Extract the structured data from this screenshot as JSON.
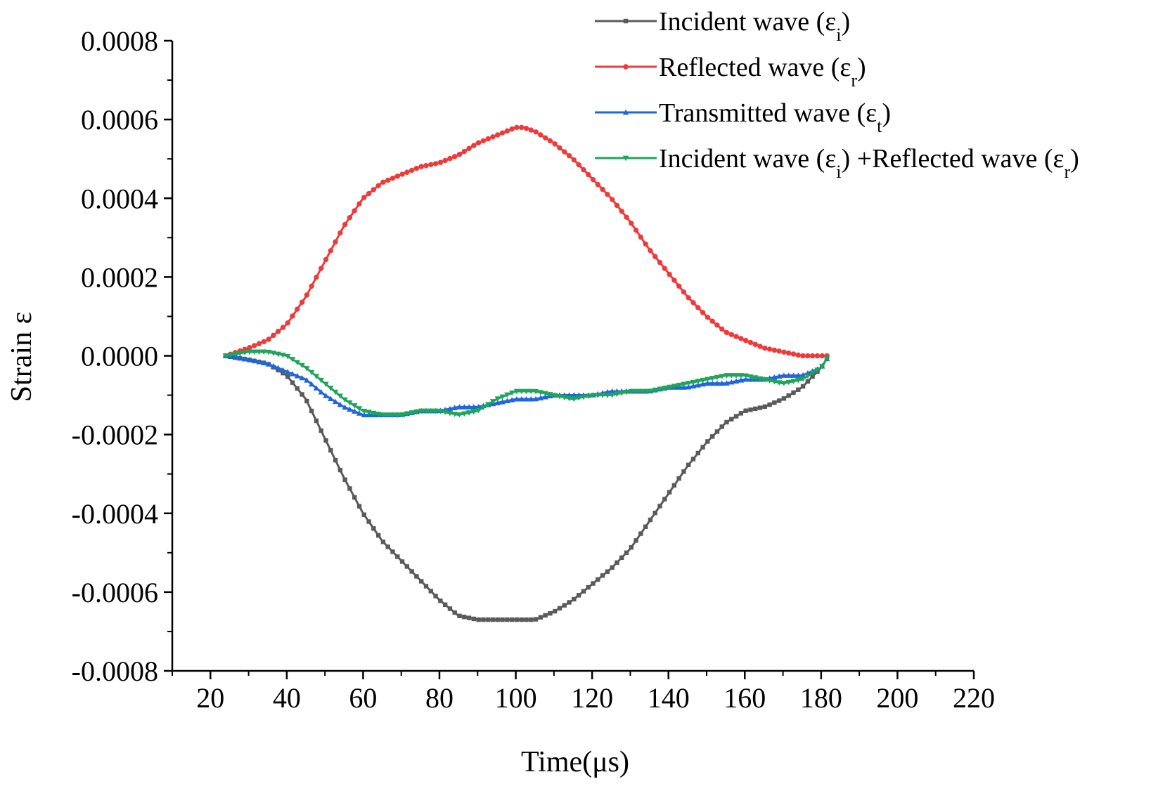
{
  "chart_data": {
    "type": "line",
    "title": "",
    "xlabel": "Time(μs)",
    "ylabel": "Strain ε",
    "xlim": [
      10,
      220
    ],
    "ylim": [
      -0.0008,
      0.0008
    ],
    "xticks": [
      20,
      40,
      60,
      80,
      100,
      120,
      140,
      160,
      180,
      200,
      220
    ],
    "xtick_labels": [
      "20",
      "40",
      "60",
      "80",
      "100",
      "120",
      "140",
      "160",
      "180",
      "200",
      "220"
    ],
    "yticks": [
      -0.0008,
      -0.0006,
      -0.0004,
      -0.0002,
      0.0,
      0.0002,
      0.0004,
      0.0006,
      0.0008
    ],
    "ytick_labels": [
      "-0.0008",
      "-0.0006",
      "-0.0004",
      "-0.0002",
      "0.0000",
      "0.0002",
      "0.0004",
      "0.0006",
      "0.0008"
    ],
    "legend_position": "top-right",
    "series": [
      {
        "name": "Incident wave (εi)",
        "label_main": "Incident wave (ε",
        "label_sub": "i",
        "label_end": ")",
        "color": "#5a5a5a",
        "marker": "square",
        "x": [
          24,
          30,
          35,
          40,
          45,
          50,
          55,
          60,
          65,
          70,
          75,
          80,
          85,
          90,
          95,
          100,
          105,
          110,
          115,
          120,
          125,
          130,
          135,
          140,
          145,
          150,
          155,
          160,
          165,
          170,
          175,
          180,
          182
        ],
        "y": [
          0.0,
          -1e-05,
          -2e-05,
          -5e-05,
          -0.00011,
          -0.00021,
          -0.00031,
          -0.0004,
          -0.00047,
          -0.00052,
          -0.00057,
          -0.00062,
          -0.00066,
          -0.00067,
          -0.00067,
          -0.00067,
          -0.00067,
          -0.00065,
          -0.00062,
          -0.00058,
          -0.00054,
          -0.00049,
          -0.00042,
          -0.00035,
          -0.00028,
          -0.00022,
          -0.00017,
          -0.00014,
          -0.00013,
          -0.00011,
          -8e-05,
          -3e-05,
          0.0
        ]
      },
      {
        "name": "Reflected wave (εr)",
        "label_main": "Reflected wave (ε",
        "label_sub": "r",
        "label_end": ")",
        "color": "#ee3a3a",
        "marker": "circle",
        "x": [
          24,
          30,
          35,
          40,
          45,
          50,
          55,
          60,
          65,
          70,
          75,
          80,
          85,
          90,
          95,
          100,
          102,
          105,
          110,
          115,
          120,
          125,
          130,
          135,
          140,
          145,
          150,
          155,
          160,
          165,
          170,
          175,
          180,
          182
        ],
        "y": [
          0.0,
          2e-05,
          4e-05,
          8e-05,
          0.00015,
          0.00024,
          0.00033,
          0.0004,
          0.00044,
          0.00046,
          0.00048,
          0.00049,
          0.00051,
          0.00054,
          0.00056,
          0.00058,
          0.00058,
          0.00057,
          0.00054,
          0.0005,
          0.00045,
          0.0004,
          0.00034,
          0.00027,
          0.00021,
          0.00015,
          0.0001,
          6e-05,
          4e-05,
          2e-05,
          1e-05,
          0.0,
          0.0,
          0.0
        ]
      },
      {
        "name": "Transmitted wave (εt)",
        "label_main": "Transmitted wave (ε",
        "label_sub": "t",
        "label_end": ")",
        "color": "#1f66dd",
        "marker": "triangle-up",
        "x": [
          24,
          30,
          35,
          40,
          45,
          50,
          55,
          60,
          65,
          70,
          75,
          80,
          85,
          90,
          95,
          100,
          105,
          110,
          115,
          120,
          125,
          130,
          135,
          140,
          145,
          150,
          155,
          160,
          165,
          170,
          175,
          180,
          182
        ],
        "y": [
          0.0,
          -1e-05,
          -2e-05,
          -4e-05,
          -6e-05,
          -0.0001,
          -0.00013,
          -0.00015,
          -0.00015,
          -0.00015,
          -0.00014,
          -0.00014,
          -0.00013,
          -0.00013,
          -0.00012,
          -0.00011,
          -0.00011,
          -0.0001,
          -0.0001,
          -0.0001,
          -9e-05,
          -9e-05,
          -9e-05,
          -8e-05,
          -8e-05,
          -7e-05,
          -7e-05,
          -6e-05,
          -6e-05,
          -5e-05,
          -5e-05,
          -3e-05,
          0.0
        ]
      },
      {
        "name": "Incident wave (εi) +Reflected wave (εr)",
        "label_main": "Incident wave (ε",
        "label_sub": "i",
        "label_end": ") +Reflected wave (ε",
        "label_sub2": "r",
        "label_end2": ")",
        "color": "#1fa55a",
        "marker": "triangle-down",
        "x": [
          24,
          30,
          35,
          40,
          45,
          50,
          55,
          60,
          65,
          70,
          75,
          80,
          85,
          90,
          95,
          100,
          105,
          110,
          115,
          120,
          125,
          130,
          135,
          140,
          145,
          150,
          155,
          160,
          165,
          170,
          175,
          180,
          182
        ],
        "y": [
          0.0,
          1e-05,
          1e-05,
          0.0,
          -3e-05,
          -7e-05,
          -0.00011,
          -0.00014,
          -0.00015,
          -0.00015,
          -0.00014,
          -0.00014,
          -0.00015,
          -0.00014,
          -0.00011,
          -9e-05,
          -9e-05,
          -0.0001,
          -0.00011,
          -0.0001,
          -0.0001,
          -9e-05,
          -9e-05,
          -8e-05,
          -7e-05,
          -6e-05,
          -5e-05,
          -5e-05,
          -6e-05,
          -7e-05,
          -6e-05,
          -3e-05,
          0.0
        ]
      }
    ]
  }
}
